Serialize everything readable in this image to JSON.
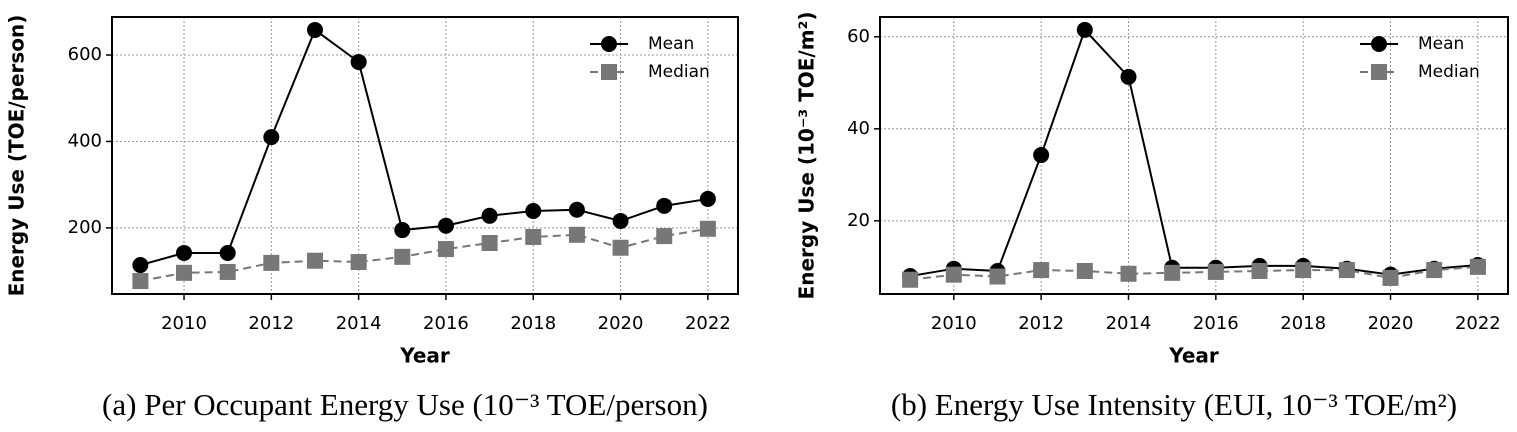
{
  "chart_data": [
    {
      "type": "line",
      "xlabel": "Year",
      "ylabel": "Energy Use (TOE/person)",
      "caption": "(a) Per Occupant Energy Use (10⁻³ TOE/person)",
      "x": [
        2009,
        2010,
        2011,
        2012,
        2013,
        2014,
        2015,
        2016,
        2017,
        2018,
        2019,
        2020,
        2021,
        2022
      ],
      "xlim": [
        2008.35,
        2022.69
      ],
      "xticks": [
        2010,
        2012,
        2014,
        2016,
        2018,
        2020,
        2022
      ],
      "ylim": [
        47,
        688
      ],
      "yticks": [
        200,
        400,
        600
      ],
      "grid": true,
      "legend": "upper right",
      "series": [
        {
          "name": "Mean",
          "color": "#000000",
          "marker": "circle",
          "linestyle": "solid",
          "values": [
            114,
            142,
            142,
            410,
            658,
            584,
            195,
            205,
            228,
            239,
            242,
            216,
            251,
            267
          ]
        },
        {
          "name": "Median",
          "color": "#777777",
          "marker": "square",
          "linestyle": "dashed",
          "values": [
            77,
            96,
            98,
            119,
            124,
            121,
            133,
            151,
            165,
            179,
            184,
            154,
            181,
            198
          ]
        }
      ]
    },
    {
      "type": "line",
      "xlabel": "Year",
      "ylabel": "Energy Use (10⁻³ TOE/m²)",
      "caption": "(b) Energy Use Intensity (EUI, 10⁻³ TOE/m²)",
      "x": [
        2009,
        2010,
        2011,
        2012,
        2013,
        2014,
        2015,
        2016,
        2017,
        2018,
        2019,
        2020,
        2021,
        2022
      ],
      "xlim": [
        2008.31,
        2022.69
      ],
      "xticks": [
        2010,
        2012,
        2014,
        2016,
        2018,
        2020,
        2022
      ],
      "ylim": [
        4.1,
        64.3
      ],
      "yticks": [
        20,
        40,
        60
      ],
      "grid": true,
      "legend": "upper right",
      "series": [
        {
          "name": "Mean",
          "color": "#000000",
          "marker": "circle",
          "linestyle": "solid",
          "values": [
            8.0,
            9.6,
            9.1,
            34.3,
            61.5,
            51.3,
            9.8,
            9.8,
            10.2,
            10.2,
            9.6,
            8.3,
            9.6,
            10.4
          ]
        },
        {
          "name": "Median",
          "color": "#777777",
          "marker": "square",
          "linestyle": "dashed",
          "values": [
            7.2,
            8.3,
            7.9,
            9.3,
            9.1,
            8.5,
            8.7,
            8.9,
            9.1,
            9.3,
            9.3,
            7.6,
            9.3,
            10.0
          ]
        }
      ]
    }
  ]
}
